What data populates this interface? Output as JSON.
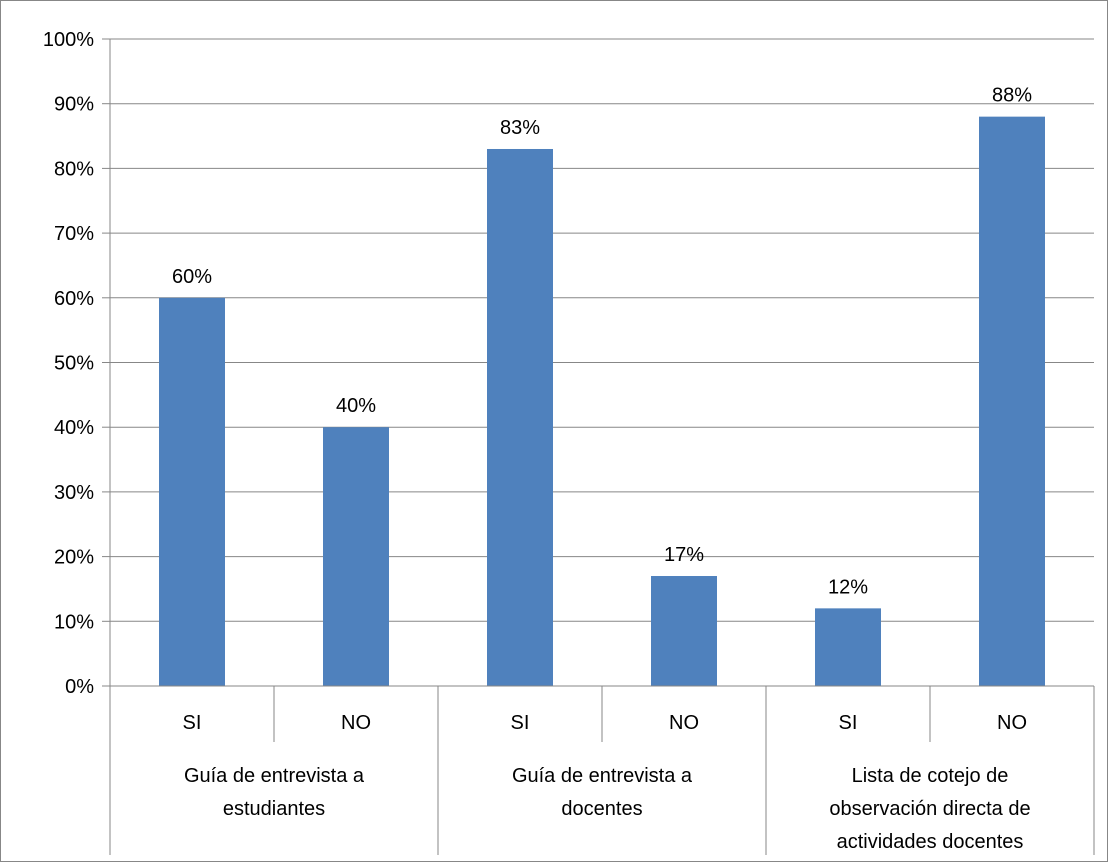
{
  "chart_data": {
    "type": "bar",
    "groups": [
      {
        "label_lines": [
          "Guía de entrevista a",
          "estudiantes"
        ],
        "categories": [
          "SI",
          "NO"
        ]
      },
      {
        "label_lines": [
          "Guía de entrevista  a",
          "docentes"
        ],
        "categories": [
          "SI",
          "NO"
        ]
      },
      {
        "label_lines": [
          "Lista de cotejo de",
          "observación directa de",
          "actividades docentes"
        ],
        "categories": [
          "SI",
          "NO"
        ]
      }
    ],
    "categories": [
      "SI",
      "NO",
      "SI",
      "NO",
      "SI",
      "NO"
    ],
    "values": [
      60,
      40,
      83,
      17,
      12,
      88
    ],
    "data_labels": [
      "60%",
      "40%",
      "83%",
      "17%",
      "12%",
      "88%"
    ],
    "y_ticks": [
      "0%",
      "10%",
      "20%",
      "30%",
      "40%",
      "50%",
      "60%",
      "70%",
      "80%",
      "90%",
      "100%"
    ],
    "ylim": [
      0,
      100
    ],
    "grid": true,
    "legend": "none",
    "bar_color": "#4f81bd",
    "grid_color": "#878787"
  }
}
